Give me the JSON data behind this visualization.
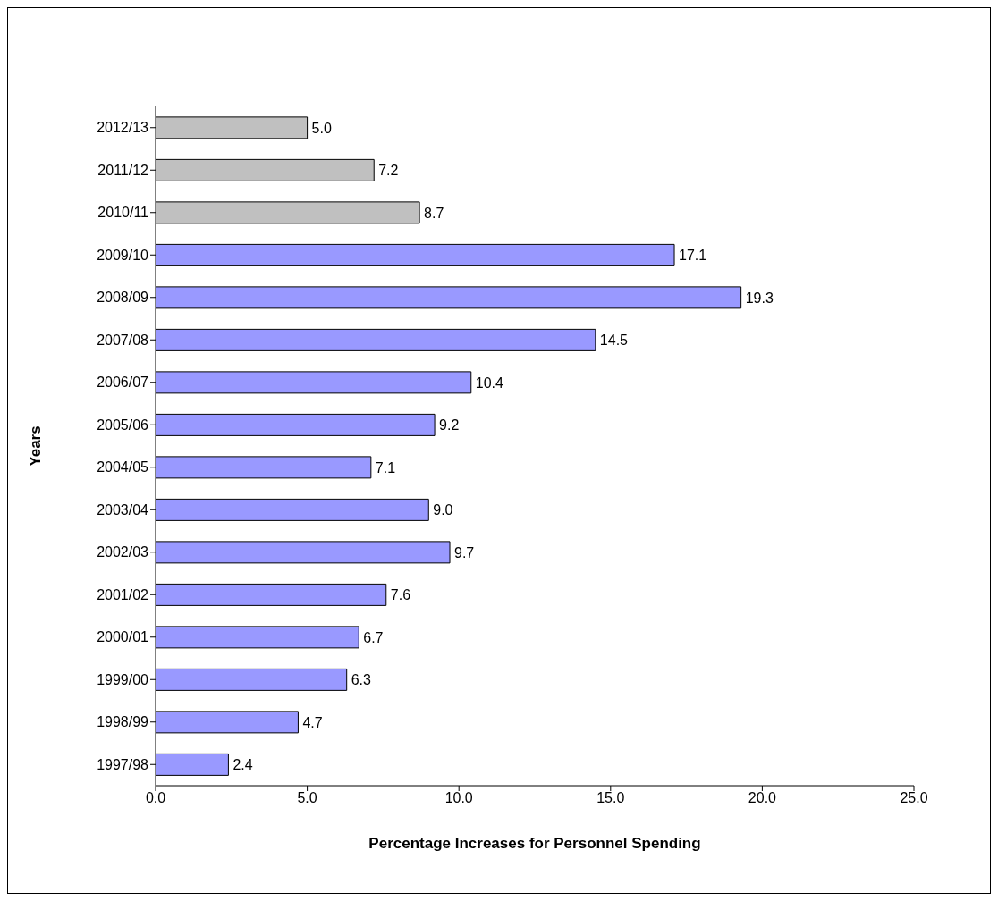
{
  "chart_data": {
    "type": "bar",
    "orientation": "horizontal",
    "xlabel": "Percentage Increases for Personnel Spending",
    "ylabel": "Years",
    "categories": [
      "2012/13",
      "2011/12",
      "2010/11",
      "2009/10",
      "2008/09",
      "2007/08",
      "2006/07",
      "2005/06",
      "2004/05",
      "2003/04",
      "2002/03",
      "2001/02",
      "2000/01",
      "1999/00",
      "1998/99",
      "1997/98"
    ],
    "values": [
      5.0,
      7.2,
      8.7,
      17.1,
      19.3,
      14.5,
      10.4,
      9.2,
      7.1,
      9.0,
      9.7,
      7.6,
      6.7,
      6.3,
      4.7,
      2.4
    ],
    "value_labels": [
      "5.0",
      "7.2",
      "8.7",
      "17.1",
      "19.3",
      "14.5",
      "10.4",
      "9.2",
      "7.1",
      "9.0",
      "9.7",
      "7.6",
      "6.7",
      "6.3",
      "4.7",
      "2.4"
    ],
    "colors": [
      "#c0c0c0",
      "#c0c0c0",
      "#c0c0c0",
      "#9999ff",
      "#9999ff",
      "#9999ff",
      "#9999ff",
      "#9999ff",
      "#9999ff",
      "#9999ff",
      "#9999ff",
      "#9999ff",
      "#9999ff",
      "#9999ff",
      "#9999ff",
      "#9999ff"
    ],
    "xlim": [
      0,
      25
    ],
    "xticks": [
      {
        "value": 0,
        "label": "0.0"
      },
      {
        "value": 5,
        "label": "5.0"
      },
      {
        "value": 10,
        "label": "10.0"
      },
      {
        "value": 15,
        "label": "15.0"
      },
      {
        "value": 20,
        "label": "20.0"
      },
      {
        "value": 25,
        "label": "25.0"
      }
    ]
  }
}
